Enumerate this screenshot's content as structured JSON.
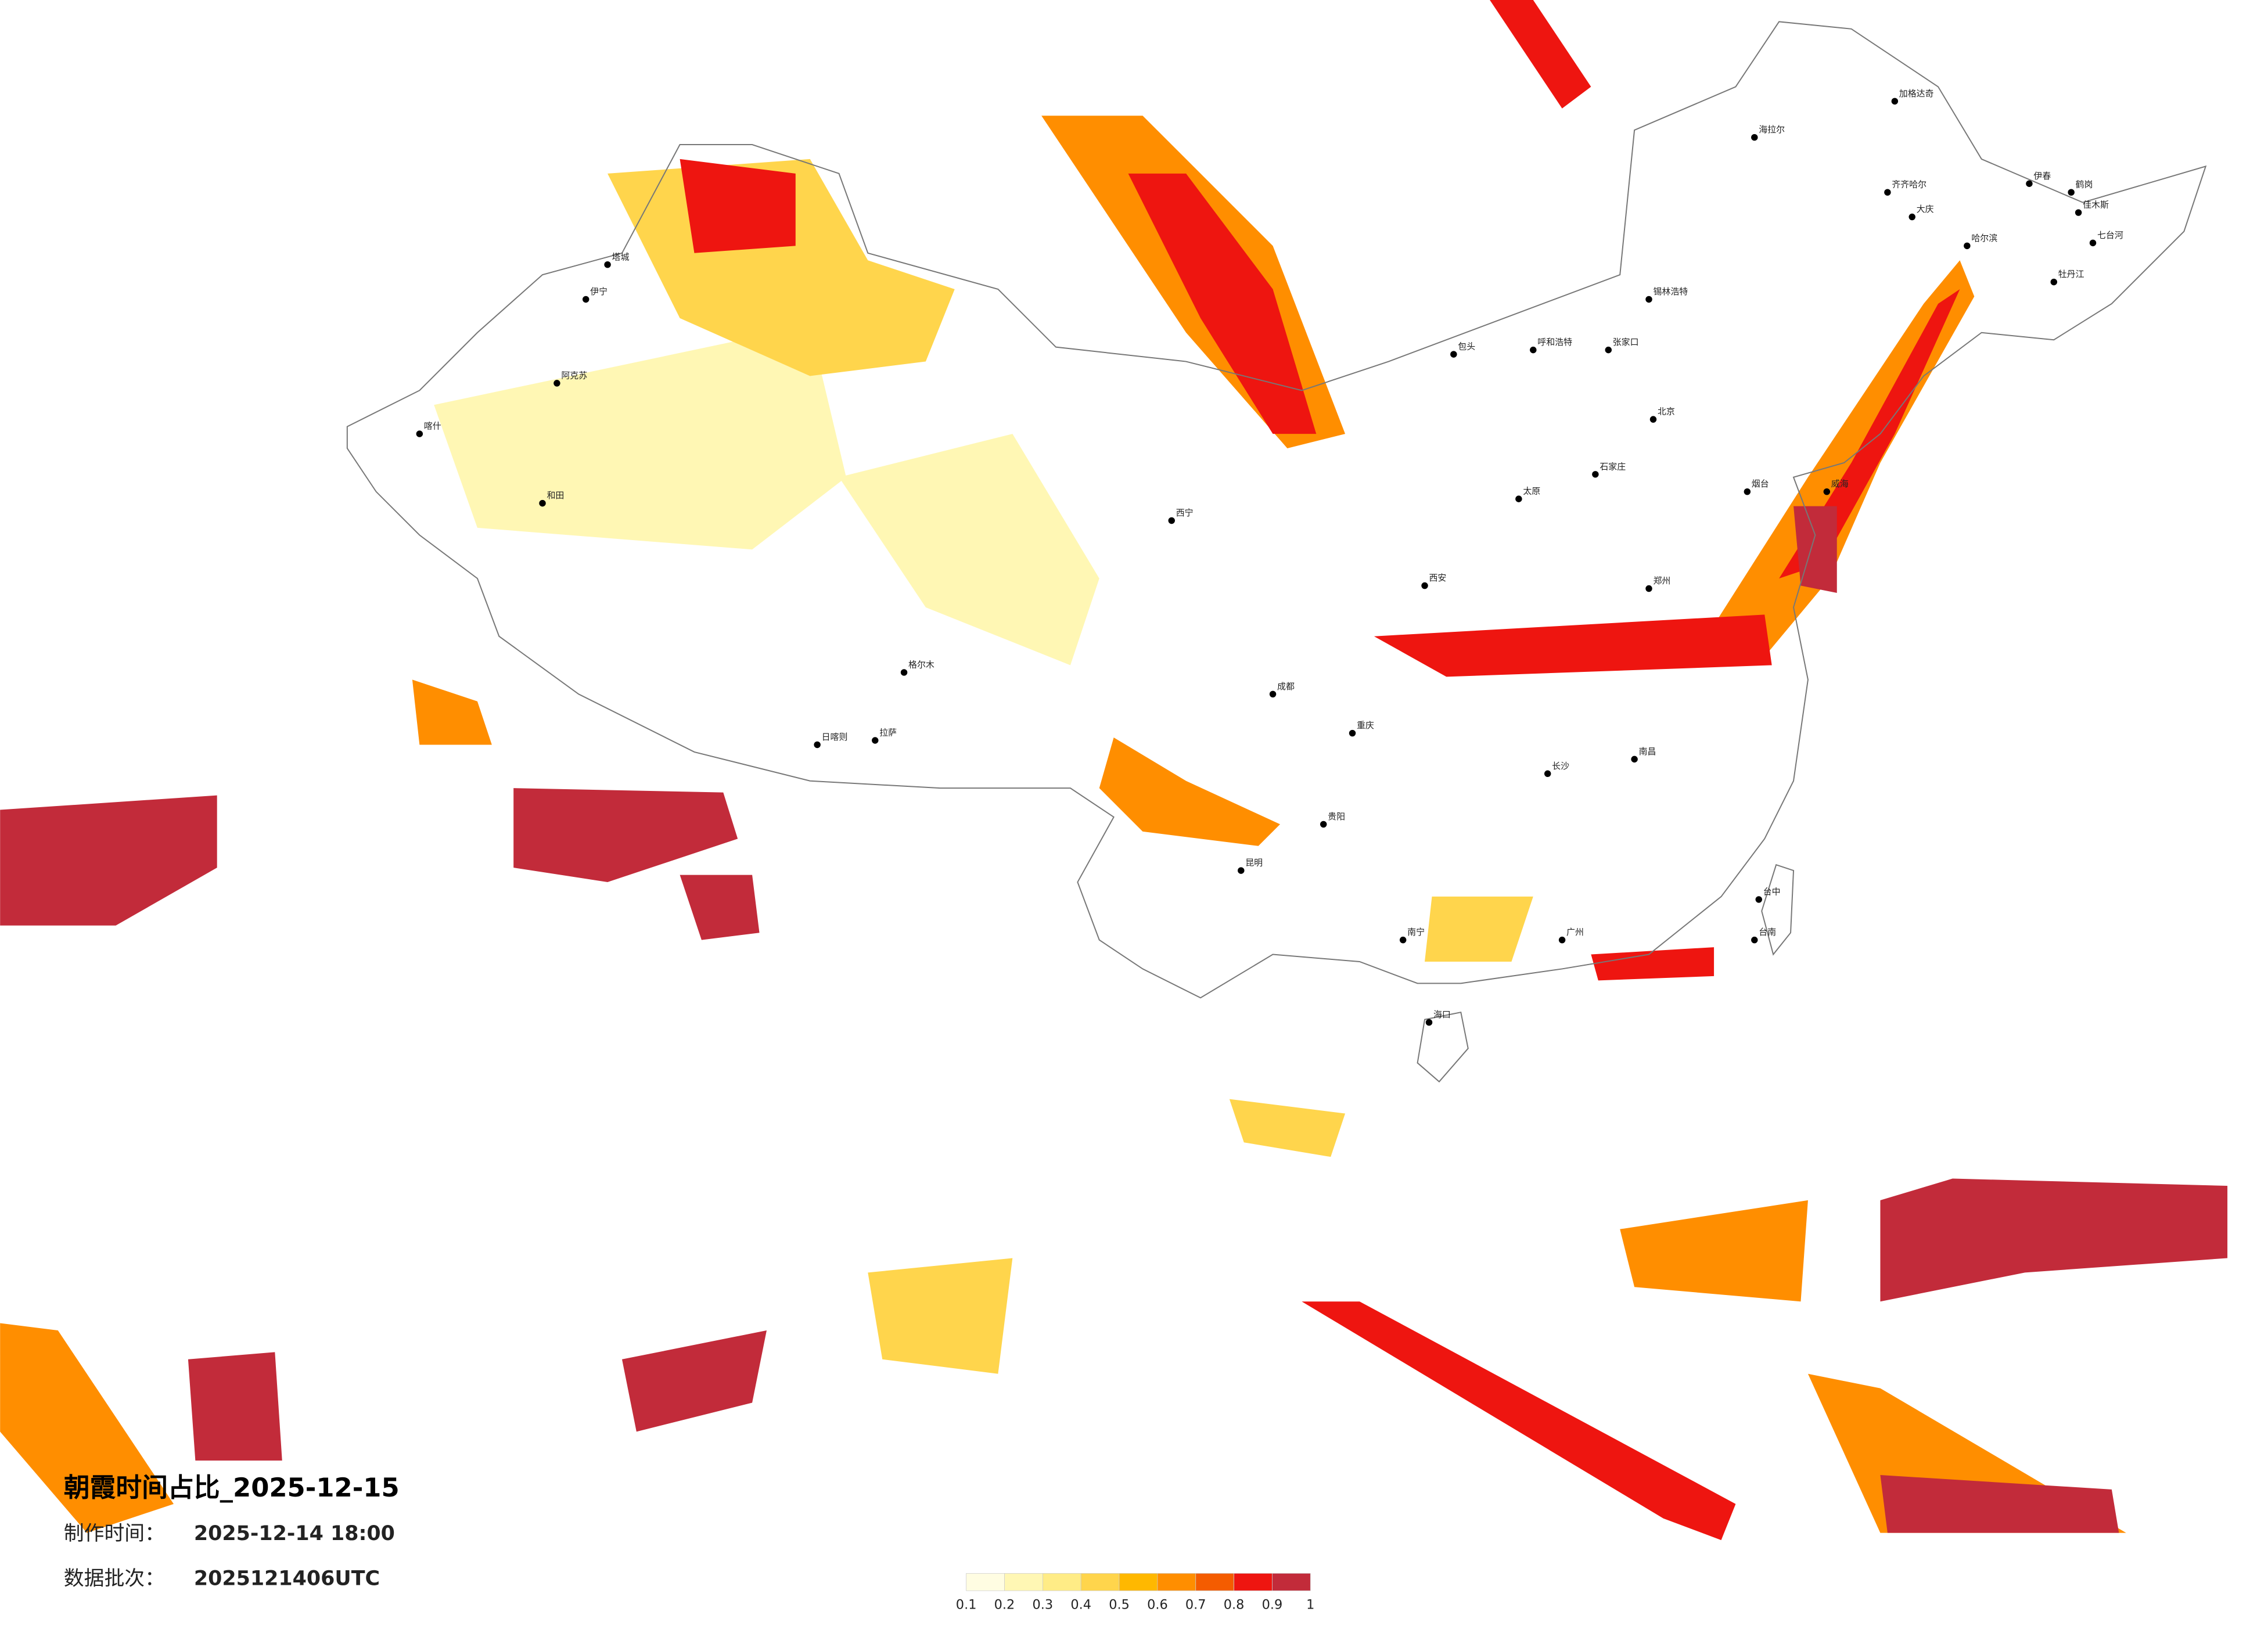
{
  "title": "朝霞时间占比_2025-12-15",
  "info": [
    {
      "label": "制作时间：",
      "value": "2025-12-14 18:00"
    },
    {
      "label": "数据批次：",
      "value": "2025121406UTC"
    }
  ],
  "legend": {
    "ticks": [
      0.1,
      0.2,
      0.3,
      0.4,
      0.5,
      0.6,
      0.7,
      0.8,
      0.9,
      1
    ],
    "colors": [
      "#fffde2",
      "#fff7b4",
      "#ffec86",
      "#ffd54c",
      "#ffb800",
      "#ff8e00",
      "#f45c00",
      "#ee1510",
      "#c22b3a"
    ]
  },
  "cities": [
    "伊宁",
    "阿克苏",
    "和田",
    "喀什",
    "塔城",
    "加格达奇",
    "海拉尔",
    "齐齐哈尔",
    "大庆",
    "哈尔滨",
    "伊春",
    "鹤岗",
    "佳木斯",
    "七台河",
    "牡丹江",
    "锡林浩特",
    "呼和浩特",
    "包头",
    "张家口",
    "北京",
    "石家庄",
    "太原",
    "郑州",
    "西安",
    "西宁",
    "成都",
    "重庆",
    "贵阳",
    "昆明",
    "南宁",
    "广州",
    "海口",
    "南昌",
    "长沙",
    "台中",
    "台南",
    "拉萨",
    "日喀则",
    "格尔木",
    "烟台",
    "威海"
  ]
}
